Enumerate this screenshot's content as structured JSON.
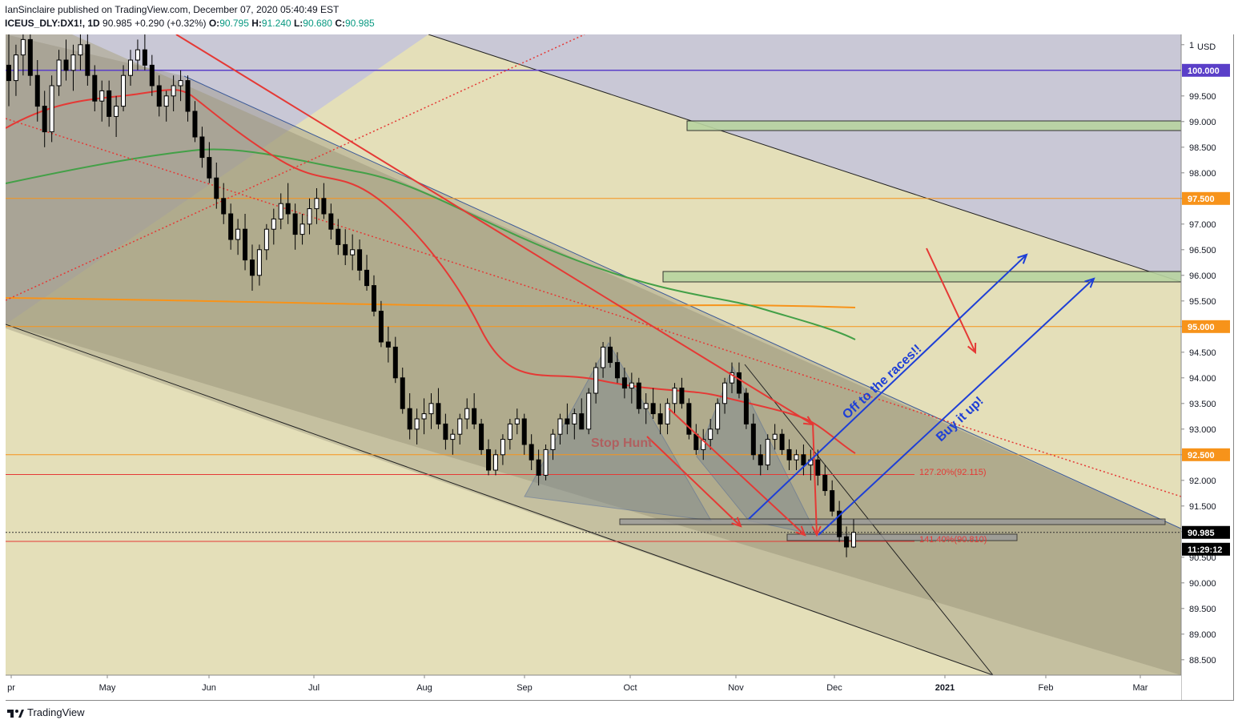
{
  "header": {
    "publisher": "IanSinclaire published on TradingView.com, December 07, 2020 05:40:49 EST",
    "symbol": "ICEUS_DLY:DX1!, 1D",
    "last": "90.985",
    "change": "+0.290 (+0.32%)",
    "o_label": "O:",
    "o": "90.795",
    "h_label": "H:",
    "h": "91.240",
    "l_label": "L:",
    "l": "90.680",
    "c_label": "C:",
    "c": "90.985"
  },
  "footer": {
    "brand": "TradingView"
  },
  "chart_data": {
    "type": "candlestick",
    "currency": "USD",
    "x_labels": [
      "pr",
      "May",
      "Jun",
      "Jul",
      "Aug",
      "Sep",
      "Oct",
      "Nov",
      "Dec",
      "2021",
      "Feb",
      "Mar"
    ],
    "y_ticks": [
      "88.500",
      "89.000",
      "89.500",
      "90.000",
      "90.500",
      "91.000",
      "91.500",
      "92.000",
      "92.500",
      "93.000",
      "93.500",
      "94.000",
      "94.500",
      "95.000",
      "95.500",
      "96.000",
      "96.500",
      "97.000",
      "97.500",
      "98.000",
      "98.500",
      "99.000",
      "99.500",
      "1"
    ],
    "ylim": [
      88.2,
      100.7
    ],
    "price_badges": [
      {
        "value": "100.000",
        "color": "#5a3fc8"
      },
      {
        "value": "97.500",
        "color": "#f7931a"
      },
      {
        "value": "95.000",
        "color": "#f7931a"
      },
      {
        "value": "92.500",
        "color": "#f7931a"
      },
      {
        "value": "90.985",
        "color": "#000000"
      },
      {
        "value": "11:29:12",
        "color": "#000000"
      }
    ],
    "horizontal_lines": [
      {
        "price": 100.0,
        "color": "#5a3fc8"
      },
      {
        "price": 97.5,
        "color": "#f7931a"
      },
      {
        "price": 95.0,
        "color": "#f7931a"
      },
      {
        "price": 92.5,
        "color": "#f7931a"
      },
      {
        "price": 92.115,
        "color": "#e53935"
      },
      {
        "price": 90.81,
        "color": "#e53935"
      }
    ],
    "fib_labels": [
      "127.20%(92.115)",
      "141.40%(90.810)"
    ],
    "annotations": [
      "Stop Hunt",
      "Off to the races!!",
      "Buy it up!"
    ],
    "candles": [
      [
        100.1,
        100.7,
        99.3,
        99.8
      ],
      [
        99.8,
        100.5,
        99.5,
        100.3
      ],
      [
        100.3,
        100.8,
        99.9,
        100.6
      ],
      [
        100.6,
        100.9,
        99.7,
        99.9
      ],
      [
        99.9,
        100.2,
        99.0,
        99.3
      ],
      [
        99.3,
        99.6,
        98.5,
        98.8
      ],
      [
        98.8,
        99.9,
        98.6,
        99.7
      ],
      [
        99.7,
        100.4,
        99.5,
        100.2
      ],
      [
        100.2,
        100.6,
        99.8,
        100.0
      ],
      [
        100.0,
        100.5,
        99.6,
        100.3
      ],
      [
        100.3,
        100.7,
        100.0,
        100.5
      ],
      [
        100.5,
        100.8,
        99.7,
        99.9
      ],
      [
        99.9,
        100.1,
        99.2,
        99.4
      ],
      [
        99.4,
        99.8,
        99.0,
        99.6
      ],
      [
        99.6,
        99.8,
        98.9,
        99.1
      ],
      [
        99.1,
        99.5,
        98.7,
        99.3
      ],
      [
        99.3,
        100.1,
        99.2,
        99.9
      ],
      [
        99.9,
        100.4,
        99.7,
        100.2
      ],
      [
        100.2,
        100.6,
        100.0,
        100.4
      ],
      [
        100.4,
        100.7,
        100.0,
        100.1
      ],
      [
        100.1,
        100.3,
        99.5,
        99.7
      ],
      [
        99.7,
        99.9,
        99.1,
        99.3
      ],
      [
        99.3,
        99.6,
        99.0,
        99.5
      ],
      [
        99.5,
        99.9,
        99.2,
        99.7
      ],
      [
        99.7,
        100.0,
        99.4,
        99.8
      ],
      [
        99.8,
        99.9,
        99.0,
        99.2
      ],
      [
        99.2,
        99.4,
        98.6,
        98.7
      ],
      [
        98.7,
        98.9,
        98.1,
        98.3
      ],
      [
        98.3,
        98.6,
        97.8,
        97.9
      ],
      [
        97.9,
        98.2,
        97.3,
        97.5
      ],
      [
        97.5,
        97.8,
        97.0,
        97.2
      ],
      [
        97.2,
        97.4,
        96.5,
        96.7
      ],
      [
        96.7,
        97.1,
        96.4,
        96.9
      ],
      [
        96.9,
        97.2,
        96.1,
        96.3
      ],
      [
        96.3,
        96.6,
        95.7,
        96.0
      ],
      [
        96.0,
        96.6,
        95.8,
        96.5
      ],
      [
        96.5,
        97.0,
        96.3,
        96.9
      ],
      [
        96.9,
        97.3,
        96.6,
        97.1
      ],
      [
        97.1,
        97.6,
        96.9,
        97.4
      ],
      [
        97.4,
        97.8,
        97.0,
        97.2
      ],
      [
        97.2,
        97.4,
        96.5,
        96.8
      ],
      [
        96.8,
        97.2,
        96.6,
        97.0
      ],
      [
        97.0,
        97.5,
        96.8,
        97.3
      ],
      [
        97.3,
        97.7,
        97.0,
        97.5
      ],
      [
        97.5,
        97.8,
        97.1,
        97.2
      ],
      [
        97.2,
        97.4,
        96.7,
        96.9
      ],
      [
        96.9,
        97.1,
        96.4,
        96.6
      ],
      [
        96.6,
        96.9,
        96.2,
        96.4
      ],
      [
        96.4,
        96.8,
        96.1,
        96.5
      ],
      [
        96.5,
        96.7,
        95.9,
        96.1
      ],
      [
        96.1,
        96.4,
        95.7,
        95.8
      ],
      [
        95.8,
        96.0,
        95.2,
        95.3
      ],
      [
        95.3,
        95.5,
        94.6,
        94.7
      ],
      [
        94.7,
        95.0,
        94.3,
        94.6
      ],
      [
        94.6,
        94.8,
        93.9,
        94.0
      ],
      [
        94.0,
        94.2,
        93.3,
        93.4
      ],
      [
        93.4,
        93.7,
        92.8,
        93.0
      ],
      [
        93.0,
        93.4,
        92.7,
        93.2
      ],
      [
        93.2,
        93.6,
        92.9,
        93.3
      ],
      [
        93.3,
        93.7,
        93.0,
        93.5
      ],
      [
        93.5,
        93.8,
        93.0,
        93.1
      ],
      [
        93.1,
        93.3,
        92.6,
        92.8
      ],
      [
        92.8,
        93.0,
        92.5,
        92.9
      ],
      [
        92.9,
        93.3,
        92.7,
        93.2
      ],
      [
        93.2,
        93.6,
        93.0,
        93.4
      ],
      [
        93.4,
        93.7,
        93.0,
        93.1
      ],
      [
        93.1,
        93.2,
        92.5,
        92.6
      ],
      [
        92.6,
        92.8,
        92.1,
        92.2
      ],
      [
        92.2,
        92.6,
        92.1,
        92.5
      ],
      [
        92.5,
        92.9,
        92.3,
        92.8
      ],
      [
        92.8,
        93.2,
        92.6,
        93.1
      ],
      [
        93.1,
        93.4,
        92.9,
        93.2
      ],
      [
        93.2,
        93.3,
        92.5,
        92.7
      ],
      [
        92.7,
        92.9,
        92.2,
        92.4
      ],
      [
        92.4,
        92.6,
        91.9,
        92.1
      ],
      [
        92.1,
        92.7,
        92.0,
        92.6
      ],
      [
        92.6,
        93.0,
        92.4,
        92.9
      ],
      [
        92.9,
        93.3,
        92.7,
        93.2
      ],
      [
        93.2,
        93.5,
        92.9,
        93.1
      ],
      [
        93.1,
        93.4,
        92.8,
        93.3
      ],
      [
        93.3,
        93.6,
        93.0,
        93.0
      ],
      [
        93.0,
        93.8,
        92.9,
        93.7
      ],
      [
        93.7,
        94.3,
        93.5,
        94.2
      ],
      [
        94.2,
        94.7,
        94.0,
        94.6
      ],
      [
        94.6,
        94.8,
        94.2,
        94.3
      ],
      [
        94.3,
        94.5,
        93.9,
        94.0
      ],
      [
        94.0,
        94.2,
        93.6,
        93.8
      ],
      [
        93.8,
        94.1,
        93.5,
        93.9
      ],
      [
        93.9,
        94.0,
        93.3,
        93.4
      ],
      [
        93.4,
        93.7,
        93.1,
        93.5
      ],
      [
        93.5,
        93.8,
        93.2,
        93.3
      ],
      [
        93.3,
        93.5,
        92.9,
        93.1
      ],
      [
        93.1,
        93.6,
        92.9,
        93.5
      ],
      [
        93.5,
        93.9,
        93.3,
        93.8
      ],
      [
        93.8,
        94.0,
        93.4,
        93.5
      ],
      [
        93.5,
        93.6,
        92.8,
        92.9
      ],
      [
        92.9,
        93.1,
        92.5,
        92.6
      ],
      [
        92.6,
        93.0,
        92.4,
        92.8
      ],
      [
        92.8,
        93.2,
        92.6,
        93.0
      ],
      [
        93.0,
        93.6,
        92.9,
        93.5
      ],
      [
        93.5,
        94.0,
        93.3,
        93.9
      ],
      [
        93.9,
        94.3,
        93.7,
        94.1
      ],
      [
        94.1,
        94.3,
        93.6,
        93.7
      ],
      [
        93.7,
        93.8,
        93.0,
        93.1
      ],
      [
        93.1,
        93.3,
        92.4,
        92.5
      ],
      [
        92.5,
        92.7,
        92.1,
        92.3
      ],
      [
        92.3,
        92.9,
        92.2,
        92.8
      ],
      [
        92.8,
        93.1,
        92.6,
        92.9
      ],
      [
        92.9,
        93.0,
        92.5,
        92.6
      ],
      [
        92.6,
        92.8,
        92.2,
        92.4
      ],
      [
        92.4,
        92.6,
        92.2,
        92.5
      ],
      [
        92.5,
        92.7,
        92.1,
        92.3
      ],
      [
        92.3,
        92.6,
        92.0,
        92.4
      ],
      [
        92.4,
        92.6,
        91.9,
        92.1
      ],
      [
        92.1,
        92.3,
        91.7,
        91.8
      ],
      [
        91.8,
        92.0,
        91.3,
        91.4
      ],
      [
        91.4,
        91.6,
        90.8,
        90.9
      ],
      [
        90.9,
        91.1,
        90.5,
        90.7
      ],
      [
        90.7,
        91.24,
        90.68,
        90.985
      ]
    ]
  }
}
